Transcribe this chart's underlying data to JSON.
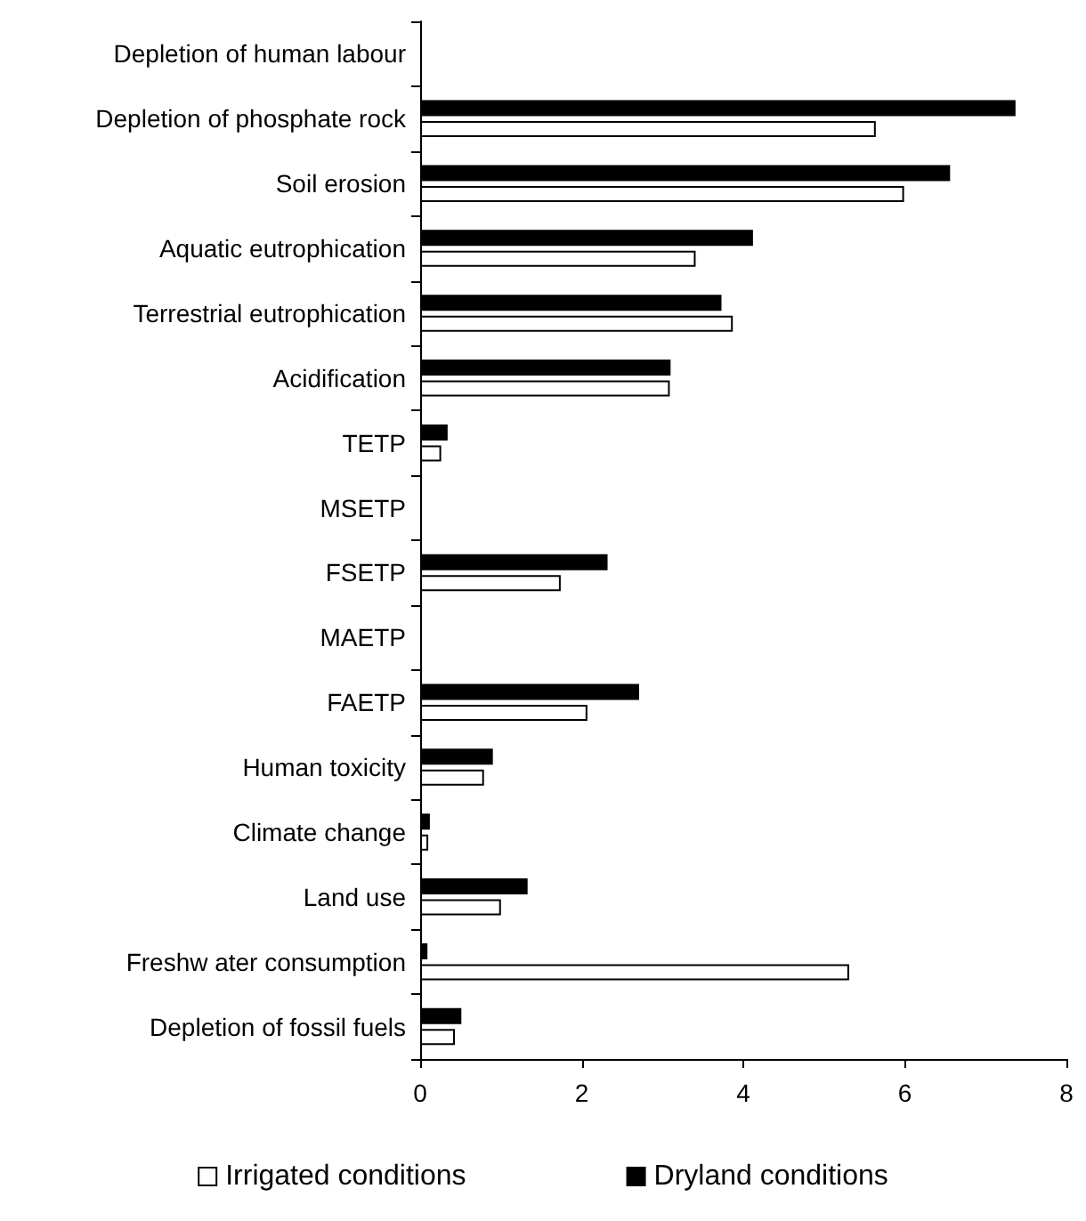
{
  "chart_data": {
    "type": "bar",
    "orientation": "horizontal",
    "categories": [
      "Depletion of human labour",
      "Depletion of phosphate rock",
      "Soil erosion",
      "Aquatic eutrophication",
      "Terrestrial eutrophication",
      "Acidification",
      "TETP",
      "MSETP",
      "FSETP",
      "MAETP",
      "FAETP",
      "Human toxicity",
      "Climate change",
      "Land use",
      "Freshw ater consumption",
      "Depletion of fossil fuels"
    ],
    "series": [
      {
        "name": "Irrigated conditions",
        "color": "#ffffff",
        "values": [
          null,
          5.64,
          5.99,
          3.41,
          3.87,
          3.09,
          0.26,
          null,
          1.74,
          null,
          2.07,
          0.79,
          0.1,
          1.0,
          5.31,
          0.43
        ]
      },
      {
        "name": "Dryland conditions",
        "color": "#000000",
        "values": [
          null,
          7.37,
          6.56,
          4.12,
          3.73,
          3.1,
          0.34,
          null,
          2.32,
          null,
          2.71,
          0.9,
          0.12,
          1.33,
          0.09,
          0.51
        ]
      }
    ],
    "xlim": [
      0,
      8
    ],
    "xticks": [
      0,
      2,
      4,
      6,
      8
    ],
    "legend": "bottom",
    "grid": false
  }
}
